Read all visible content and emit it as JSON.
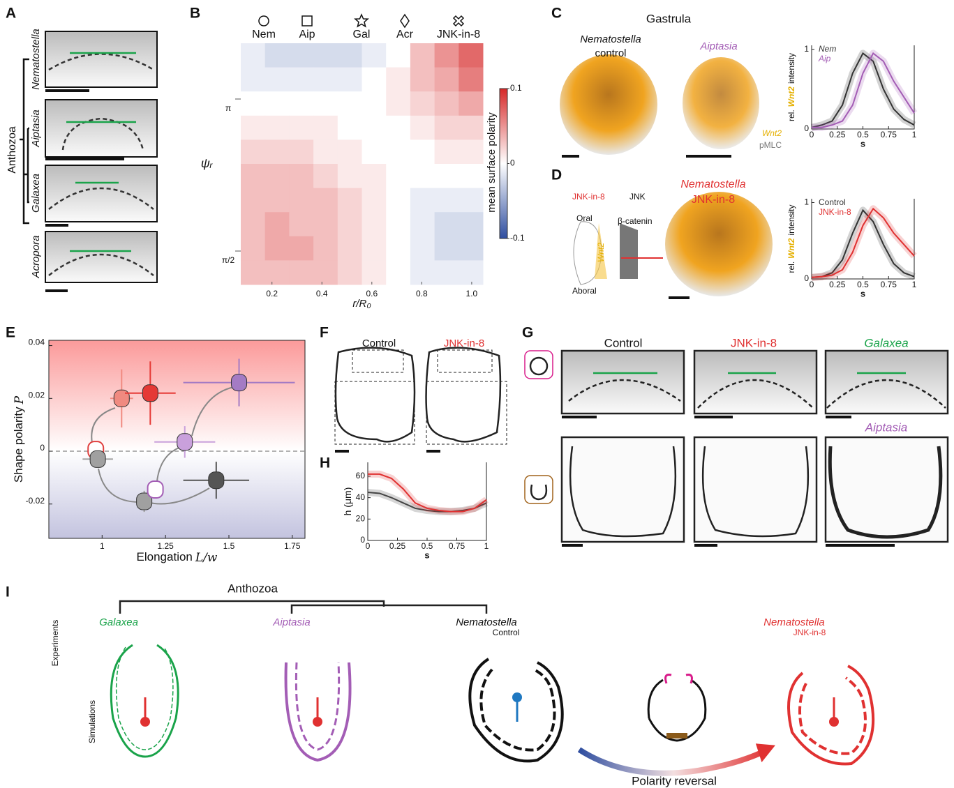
{
  "panel_labels": [
    "A",
    "B",
    "C",
    "D",
    "E",
    "F",
    "G",
    "H",
    "I"
  ],
  "panel_a": {
    "species": [
      "Nematostella",
      "Aiptasia",
      "Galaxea",
      "Acropora"
    ],
    "clade": "Anthozoa"
  },
  "panel_c": {
    "title": "Gastrula",
    "nem_label": "Nematostella",
    "nem_sublabel": "control",
    "aip_label": "Aiptasia",
    "stains": [
      "Wnt2",
      "pMLC"
    ]
  },
  "panel_d": {
    "inhibitor": "JNK-in-8",
    "target": "JNK",
    "effector": "β-catenin",
    "oral": "Oral",
    "aboral": "Aboral",
    "gene": "Wnt2",
    "image_label": "Nematostella",
    "image_sublabel": "JNK-in-8"
  },
  "panel_f": {
    "labels": [
      "Control",
      "JNK-in-8"
    ]
  },
  "panel_g": {
    "labels": [
      "Control",
      "JNK-in-8",
      "Galaxea",
      "Aiptasia"
    ]
  },
  "panel_i": {
    "clade": "Anthozoa",
    "galaxea": "Galaxea",
    "aiptasia": "Aiptasia",
    "nem_control": "Nematostella",
    "control": "Control",
    "nem_jnk": "Nematostella",
    "jnk": "JNK-in-8",
    "experiments": "Experiments",
    "simulations": "Simulations",
    "reversal": "Polarity reversal"
  },
  "chart_data": [
    {
      "type": "heatmap",
      "symbols": [
        "Nem",
        "Aip",
        "Gal",
        "Acr",
        "JNK-in-8"
      ],
      "x_label": "r/R₀",
      "y_label": "ψᵣ",
      "colorbar_label": "mean surface polarity",
      "xlim": [
        0.075,
        1.045
      ],
      "xticks": [
        0.2,
        0.4,
        0.6,
        0.8,
        {
          "value": 1,
          "label": "1.0"
        }
      ],
      "ylim": [
        1.225,
        3.718
      ],
      "yticks": [
        {
          "value": 3.1416,
          "label": "π"
        },
        {
          "value": 1.5708,
          "label": "π/2"
        }
      ],
      "zlim": [
        -0.1,
        0.1
      ],
      "zticks": [
        0.1,
        0,
        -0.1
      ],
      "values": [
        [
          -0.01,
          -0.02,
          -0.02,
          -0.02,
          -0.02,
          -0.01,
          0.0,
          0.03,
          0.05,
          0.07
        ],
        [
          -0.01,
          -0.01,
          -0.01,
          -0.01,
          -0.01,
          0.0,
          0.01,
          0.03,
          0.04,
          0.06
        ],
        [
          0.0,
          0.0,
          0.0,
          0.0,
          0.0,
          0.0,
          0.01,
          0.02,
          0.03,
          0.04
        ],
        [
          0.01,
          0.01,
          0.01,
          0.01,
          0.0,
          0.0,
          0.0,
          0.01,
          0.02,
          0.02
        ],
        [
          0.02,
          0.02,
          0.02,
          0.01,
          0.01,
          0.0,
          0.0,
          0.0,
          0.01,
          0.01
        ],
        [
          0.03,
          0.03,
          0.03,
          0.02,
          0.01,
          0.01,
          0.0,
          0.0,
          0.0,
          0.0
        ],
        [
          0.03,
          0.03,
          0.03,
          0.03,
          0.02,
          0.01,
          0.0,
          -0.01,
          -0.01,
          -0.01
        ],
        [
          0.03,
          0.04,
          0.03,
          0.03,
          0.02,
          0.01,
          0.0,
          -0.01,
          -0.02,
          -0.02
        ],
        [
          0.03,
          0.04,
          0.04,
          0.03,
          0.02,
          0.01,
          0.0,
          -0.01,
          -0.02,
          -0.02
        ],
        [
          0.03,
          0.03,
          0.03,
          0.03,
          0.02,
          0.01,
          0.0,
          -0.01,
          -0.01,
          -0.01
        ]
      ]
    },
    {
      "type": "line",
      "x_label": "s",
      "y_label": [
        "rel.",
        "Wnt2",
        "intensity"
      ],
      "x": [
        0,
        0.1,
        0.2,
        0.3,
        0.4,
        0.5,
        0.6,
        0.7,
        0.8,
        0.9,
        1
      ],
      "xlim": [
        0,
        1
      ],
      "xticks": [
        0,
        0.25,
        0.5,
        0.75,
        1
      ],
      "ylim": [
        0,
        1.05
      ],
      "yticks": [
        0,
        1
      ],
      "legend": "upper left",
      "series": [
        {
          "name": "Nem",
          "color": "#333333",
          "values": [
            0.02,
            0.05,
            0.1,
            0.3,
            0.7,
            0.95,
            0.85,
            0.5,
            0.25,
            0.12,
            0.05
          ]
        },
        {
          "name": "Aip",
          "color": "#a35db5",
          "values": [
            0.02,
            0.02,
            0.05,
            0.1,
            0.3,
            0.7,
            0.95,
            0.85,
            0.6,
            0.4,
            0.2
          ]
        }
      ]
    },
    {
      "type": "line",
      "x_label": "s",
      "y_label": [
        "rel.",
        "Wnt2",
        "intensity"
      ],
      "x": [
        0,
        0.1,
        0.2,
        0.3,
        0.4,
        0.5,
        0.6,
        0.7,
        0.8,
        0.9,
        1
      ],
      "xlim": [
        0,
        1
      ],
      "xticks": [
        0,
        0.25,
        0.5,
        0.75,
        1
      ],
      "ylim": [
        0,
        1.05
      ],
      "yticks": [
        0,
        1
      ],
      "legend": "upper left",
      "series": [
        {
          "name": "Control",
          "color": "#333333",
          "values": [
            0.02,
            0.03,
            0.08,
            0.25,
            0.6,
            0.9,
            0.75,
            0.45,
            0.2,
            0.08,
            0.03
          ]
        },
        {
          "name": "JNK-in-8",
          "color": "#e03131",
          "values": [
            0.02,
            0.03,
            0.05,
            0.12,
            0.35,
            0.7,
            0.92,
            0.8,
            0.6,
            0.45,
            0.3
          ]
        }
      ]
    },
    {
      "type": "scatter",
      "x_label": [
        "Elongation",
        "L/w"
      ],
      "y_label": [
        "Shape polarity",
        "P"
      ],
      "xlim": [
        0.79,
        1.8
      ],
      "xticks": [
        1,
        1.25,
        1.5,
        1.75
      ],
      "ylim": [
        -0.033,
        0.042
      ],
      "yticks": [
        0.04,
        0.02,
        0,
        -0.02
      ],
      "points": [
        {
          "x": 0.975,
          "y": 0.0005,
          "color": "#e0403f",
          "style": "outline"
        },
        {
          "x": 0.983,
          "y": -0.003,
          "xerr": 0.06,
          "color": "#a0a0a0"
        },
        {
          "x": 1.077,
          "y": 0.02,
          "xerr": 0.045,
          "yerr": 0.011,
          "color": "#f08a80"
        },
        {
          "x": 1.19,
          "y": 0.022,
          "xerr": 0.1,
          "yerr": 0.012,
          "color": "#e53935"
        },
        {
          "x": 1.166,
          "y": -0.019,
          "yerr": 0.004,
          "color": "#a0a0a0"
        },
        {
          "x": 1.21,
          "y": -0.0145,
          "color": "#a35db5",
          "style": "outline"
        },
        {
          "x": 1.326,
          "y": 0.0035,
          "xerr": 0.12,
          "yerr": 0.006,
          "color": "#c9a0dc"
        },
        {
          "x": 1.45,
          "y": -0.011,
          "xerr": 0.13,
          "yerr": 0.007,
          "color": "#555555"
        },
        {
          "x": 1.54,
          "y": 0.026,
          "xerr": 0.22,
          "yerr": 0.009,
          "color": "#a47bc4"
        }
      ]
    },
    {
      "type": "line",
      "x_label": "s",
      "y_label": [
        "h (μm)"
      ],
      "x": [
        0,
        0.1,
        0.2,
        0.3,
        0.4,
        0.5,
        0.6,
        0.7,
        0.8,
        0.9,
        1
      ],
      "xlim": [
        0,
        1
      ],
      "xticks": [
        0,
        0.25,
        0.5,
        0.75,
        1
      ],
      "ylim": [
        0,
        73
      ],
      "yticks": [
        0,
        20,
        40,
        60
      ],
      "series": [
        {
          "color": "#444444",
          "values": [
            45,
            44,
            40,
            35,
            30,
            28,
            27,
            27,
            28,
            30,
            35
          ]
        },
        {
          "color": "#e03131",
          "values": [
            62,
            62,
            58,
            48,
            35,
            30,
            28,
            27,
            27,
            30,
            38
          ]
        }
      ]
    }
  ]
}
